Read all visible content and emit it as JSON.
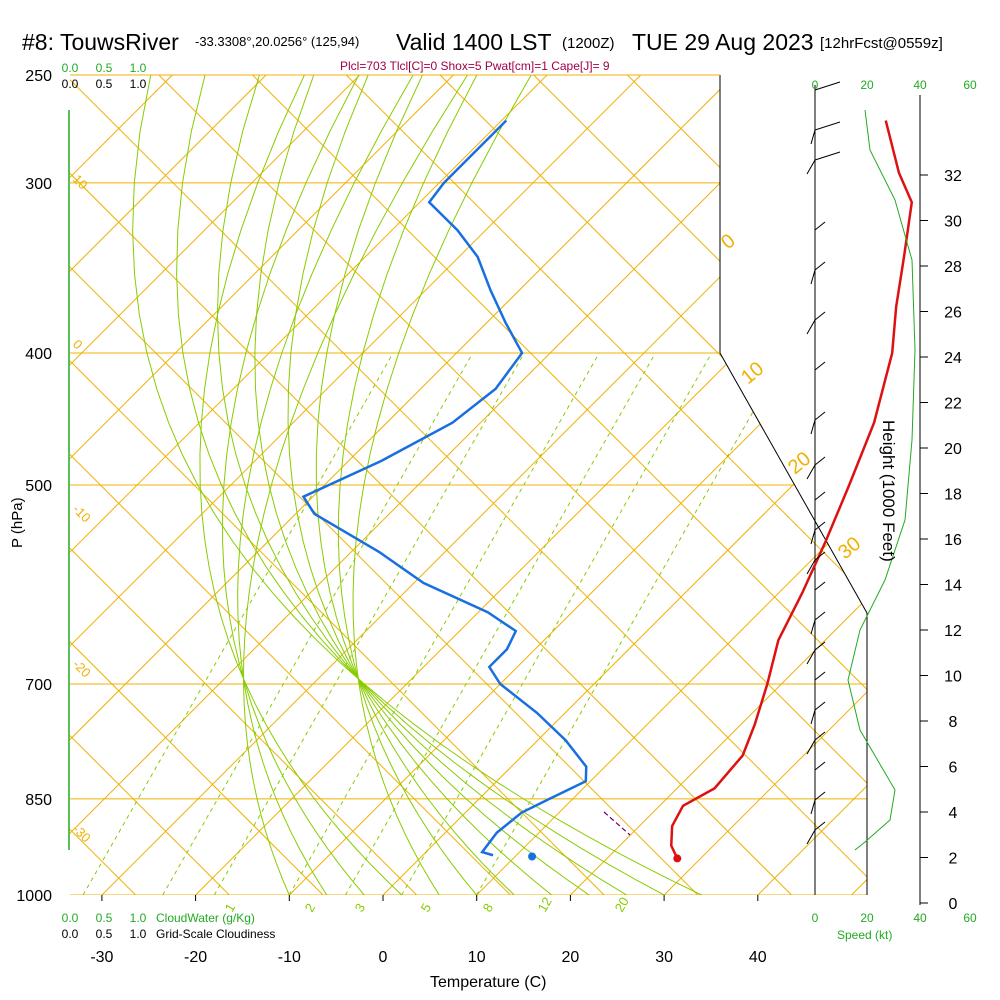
{
  "chart_data": {
    "type": "skew-t",
    "title": "#8: TouwsRiver",
    "location": "-33.3308°,20.0256° (125,94)",
    "valid": "Valid 1400 LST",
    "utc": "(1200Z)",
    "date": "TUE 29 Aug 2023",
    "forecast": "[12hrFcst@0559z]",
    "indices": "Plcl=703 Tlcl[C]=0 Shox=5 Pwat[cm]=1 Cape[J]= 9",
    "xlabel": "Temperature (C)",
    "ylabel": "P (hPa)",
    "y2label": "Height (1000 Feet)",
    "x_ticks": [
      "-30",
      "-20",
      "-10",
      "0",
      "10",
      "20",
      "30",
      "40"
    ],
    "pressure_ticks": [
      "250",
      "300",
      "400",
      "500",
      "700",
      "850",
      "1000"
    ],
    "height_ticks": [
      "0",
      "2",
      "4",
      "6",
      "8",
      "10",
      "12",
      "14",
      "16",
      "18",
      "20",
      "22",
      "24",
      "26",
      "28",
      "30",
      "32"
    ],
    "isotherm_labels": [
      "10",
      "0",
      "-10",
      "-20",
      "-30"
    ],
    "dry_adiabat_labels": [
      "0",
      "10",
      "20",
      "30"
    ],
    "mixing_ratio_labels": [
      "1",
      "2",
      "3",
      "5",
      "8",
      "12",
      "20"
    ],
    "top_scale_green": [
      "0.0",
      "0.5",
      "1.0"
    ],
    "top_scale_black": [
      "0.0",
      "0.5",
      "1.0"
    ],
    "bottom_scale_green": [
      "0.0",
      "0.5",
      "1.0"
    ],
    "bottom_scale_black": [
      "0.0",
      "0.5",
      "1.0"
    ],
    "cloudwater_label": "CloudWater (g/Kg)",
    "cloudiness_label": "Grid-Scale Cloudiness",
    "speed_label": "Speed (kt)",
    "speed_ticks_green": [
      "0",
      "20",
      "40",
      "60"
    ],
    "speed_ticks_black": [
      "0",
      "20",
      "40",
      "60"
    ],
    "temperature_profile": [
      {
        "p": 940,
        "t": 27.5
      },
      {
        "p": 920,
        "t": 25.5
      },
      {
        "p": 890,
        "t": 23.5
      },
      {
        "p": 860,
        "t": 22.5
      },
      {
        "p": 835,
        "t": 24.0
      },
      {
        "p": 790,
        "t": 23.5
      },
      {
        "p": 750,
        "t": 21.5
      },
      {
        "p": 700,
        "t": 18.5
      },
      {
        "p": 650,
        "t": 15.0
      },
      {
        "p": 600,
        "t": 12.5
      },
      {
        "p": 550,
        "t": 9.5
      },
      {
        "p": 500,
        "t": 6.0
      },
      {
        "p": 450,
        "t": 2.0
      },
      {
        "p": 400,
        "t": -3.5
      },
      {
        "p": 370,
        "t": -8.0
      },
      {
        "p": 340,
        "t": -12.5
      },
      {
        "p": 310,
        "t": -17.5
      },
      {
        "p": 295,
        "t": -22.0
      },
      {
        "p": 270,
        "t": -29.0
      }
    ],
    "dewpoint_profile": [
      {
        "p": 935,
        "t": 7.5
      },
      {
        "p": 930,
        "t": 6.0
      },
      {
        "p": 900,
        "t": 5.5
      },
      {
        "p": 870,
        "t": 6.0
      },
      {
        "p": 850,
        "t": 7.5
      },
      {
        "p": 825,
        "t": 9.5
      },
      {
        "p": 805,
        "t": 8.0
      },
      {
        "p": 770,
        "t": 3.0
      },
      {
        "p": 735,
        "t": -3.0
      },
      {
        "p": 700,
        "t": -10.0
      },
      {
        "p": 680,
        "t": -13.0
      },
      {
        "p": 660,
        "t": -13.0
      },
      {
        "p": 640,
        "t": -14.0
      },
      {
        "p": 620,
        "t": -19.0
      },
      {
        "p": 590,
        "t": -29.0
      },
      {
        "p": 560,
        "t": -37.0
      },
      {
        "p": 525,
        "t": -48.0
      },
      {
        "p": 510,
        "t": -51.0
      },
      {
        "p": 480,
        "t": -46.5
      },
      {
        "p": 450,
        "t": -43.0
      },
      {
        "p": 425,
        "t": -42.0
      },
      {
        "p": 400,
        "t": -43.0
      },
      {
        "p": 380,
        "t": -48.0
      },
      {
        "p": 360,
        "t": -53.0
      },
      {
        "p": 340,
        "t": -58.0
      },
      {
        "p": 325,
        "t": -63.0
      },
      {
        "p": 310,
        "t": -69.0
      },
      {
        "p": 300,
        "t": -69.5
      },
      {
        "p": 290,
        "t": -69.5
      },
      {
        "p": 270,
        "t": -69.5
      }
    ],
    "surface_dewpoint_marker": {
      "p": 937,
      "t": 11.8
    },
    "colors": {
      "temperature": "#dd1111",
      "dewpoint": "#1a6fe0",
      "isotherm": "#f0b000",
      "dry_adiabat": "#f0b000",
      "moist_adiabat": "#88cc00",
      "mixing_ratio": "#88cc00",
      "green_text": "#22aa22",
      "indices": "#a0004a"
    }
  }
}
